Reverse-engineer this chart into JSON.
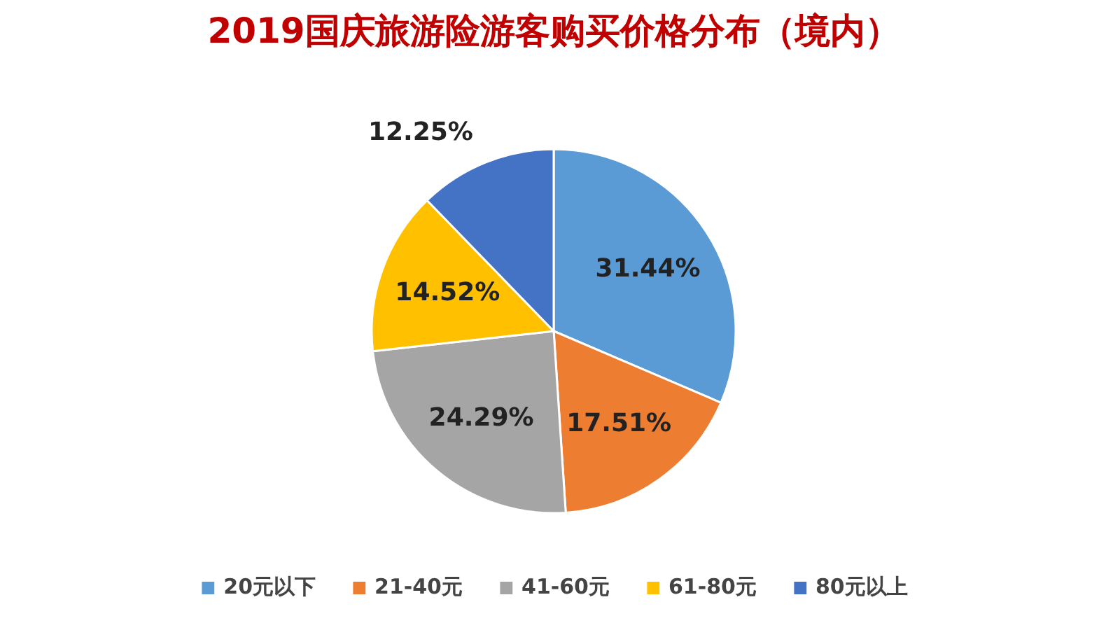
{
  "chart_data": {
    "type": "pie",
    "title": "2019国庆旅游险游客购买价格分布（境内）",
    "categories": [
      "20元以下",
      "21-40元",
      "41-60元",
      "61-80元",
      "80元以上"
    ],
    "values": [
      31.44,
      17.51,
      24.29,
      14.52,
      12.25
    ],
    "value_labels": [
      "31.44%",
      "17.51%",
      "24.29%",
      "14.52%",
      "12.25%"
    ],
    "colors": [
      "#5b9bd5",
      "#ed7d31",
      "#a5a5a5",
      "#ffc000",
      "#4472c4"
    ],
    "legend": "bottom"
  }
}
